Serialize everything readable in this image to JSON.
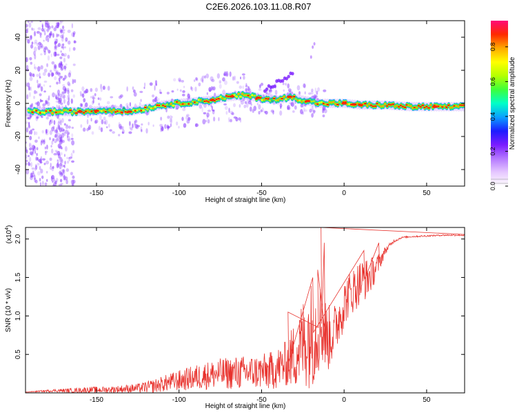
{
  "title": "C2E6.2026.103.11.08.R07",
  "colors": {
    "line": "#e8322d",
    "axis": "#000000",
    "speckle": "#8a3cff",
    "colormap": [
      "#ffffff",
      "#e6c8ff",
      "#b478ff",
      "#7a1cff",
      "#1c1cff",
      "#0aa0ff",
      "#00ffc8",
      "#3cff3c",
      "#b4ff00",
      "#ffff00",
      "#ffaa00",
      "#ff2a00",
      "#ff0a78"
    ]
  },
  "chart_data": [
    {
      "type": "heatmap",
      "name": "spectrogram",
      "xlabel": "Height of straight line (km)",
      "ylabel": "Frequency (Hz)",
      "xlim": [
        -193,
        73
      ],
      "ylim": [
        -50,
        50
      ],
      "xticks": [
        -150,
        -100,
        -50,
        0,
        50
      ],
      "yticks": [
        -40,
        -20,
        0,
        20,
        40
      ],
      "ridge": {
        "x": [
          -190,
          -175,
          -160,
          -150,
          -140,
          -130,
          -120,
          -110,
          -100,
          -90,
          -80,
          -70,
          -60,
          -50,
          -40,
          -33,
          -25,
          -15,
          -5,
          0,
          10,
          25,
          40,
          60,
          73
        ],
        "freq": [
          -5,
          -5,
          -5,
          -4.5,
          -4,
          -5,
          -3,
          -1,
          0,
          1,
          2,
          4,
          5,
          3,
          2,
          4,
          2,
          0,
          0,
          0,
          -1,
          -1,
          -2,
          -2,
          -2
        ]
      },
      "colorbar": {
        "label": "Normalized spectral amplitude",
        "range": [
          0.0,
          0.95
        ],
        "ticks": [
          0.0,
          0.2,
          0.4,
          0.6,
          0.8
        ]
      }
    },
    {
      "type": "line",
      "name": "snr",
      "xlabel": "Height of straight line (km)",
      "ylabel": "SNR (10 * v/v)",
      "multiplier": "(x10^4)",
      "xlim": [
        -193,
        73
      ],
      "ylim": [
        0,
        2.15
      ],
      "xticks": [
        -150,
        -100,
        -50,
        0,
        50
      ],
      "yticks": [
        0.5,
        1.0,
        1.5,
        2.0
      ],
      "series": [
        {
          "name": "SNR",
          "x": [
            -193,
            -185,
            -175,
            -165,
            -155,
            -145,
            -135,
            -125,
            -115,
            -105,
            -95,
            -85,
            -75,
            -65,
            -55,
            -45,
            -35,
            -28,
            -22,
            -18,
            -14,
            -10,
            -6,
            -2,
            2,
            6,
            10,
            15,
            20,
            25,
            30,
            35,
            40,
            50,
            60,
            73
          ],
          "y": [
            0.01,
            0.02,
            0.03,
            0.03,
            0.04,
            0.04,
            0.05,
            0.06,
            0.09,
            0.14,
            0.18,
            0.22,
            0.25,
            0.26,
            0.27,
            0.28,
            0.38,
            0.55,
            0.75,
            0.8,
            0.9,
            0.7,
            0.8,
            1.05,
            1.25,
            1.35,
            1.45,
            1.5,
            1.65,
            1.85,
            1.97,
            2.02,
            2.03,
            2.04,
            2.05,
            2.05
          ],
          "noise": [
            0.0,
            0.01,
            0.02,
            0.03,
            0.04,
            0.04,
            0.05,
            0.06,
            0.09,
            0.12,
            0.15,
            0.18,
            0.2,
            0.22,
            0.22,
            0.25,
            0.3,
            0.5,
            0.7,
            0.7,
            0.55,
            0.45,
            0.35,
            0.35,
            0.3,
            0.3,
            0.3,
            0.25,
            0.15,
            0.05,
            0.02,
            0.01,
            0.01,
            0.01,
            0.01,
            0.01
          ],
          "peaks": [
            {
              "x": -14,
              "y": 2.15
            },
            {
              "x": -12,
              "y": 1.95
            },
            {
              "x": -16,
              "y": 1.6
            },
            {
              "x": -34,
              "y": 1.05
            },
            {
              "x": -19,
              "y": 1.5
            },
            {
              "x": 12,
              "y": 1.85
            },
            {
              "x": 21,
              "y": 1.95
            }
          ]
        }
      ]
    }
  ]
}
